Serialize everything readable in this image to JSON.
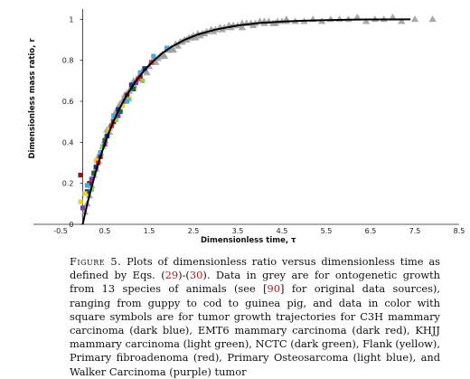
{
  "chart_data": {
    "type": "scatter",
    "xlabel": "Dimensionless time, τ",
    "ylabel": "Dimensionless mass ratio, r",
    "xlim": [
      -0.5,
      8.5
    ],
    "ylim": [
      0,
      1.05
    ],
    "xticks": [
      -0.5,
      0.5,
      1.5,
      2.5,
      3.5,
      4.5,
      5.5,
      6.5,
      7.5,
      8.5
    ],
    "yticks": [
      0,
      0.2,
      0.4,
      0.6,
      0.8,
      1
    ],
    "xtick_labels": [
      "-0.5",
      "0.5",
      "1.5",
      "2.5",
      "3.5",
      "4.5",
      "5.5",
      "6.5",
      "7.5",
      "8.5"
    ],
    "ytick_labels": [
      "0",
      "0.2",
      "0.4",
      "0.6",
      "0.8",
      "1"
    ],
    "grid": false,
    "legend": "none",
    "curve": {
      "x": [
        0,
        0.1,
        0.2,
        0.3,
        0.4,
        0.5,
        0.6,
        0.7,
        0.8,
        0.9,
        1.0,
        1.2,
        1.4,
        1.6,
        1.8,
        2.0,
        2.3,
        2.6,
        3.0,
        3.5,
        4.0,
        4.5,
        5.0,
        5.5,
        6.0,
        6.5,
        7.0,
        7.4
      ],
      "y": [
        0.0,
        0.097,
        0.181,
        0.259,
        0.33,
        0.394,
        0.452,
        0.504,
        0.551,
        0.593,
        0.632,
        0.699,
        0.753,
        0.798,
        0.835,
        0.865,
        0.9,
        0.926,
        0.95,
        0.97,
        0.982,
        0.989,
        0.993,
        0.996,
        0.998,
        0.999,
        0.999,
        1.0
      ],
      "color": "#000000"
    },
    "series": [
      {
        "marker": "triangle",
        "color": "#9a9a9a",
        "x": [
          0.05,
          0.1,
          0.15,
          0.2,
          0.25,
          0.3,
          0.35,
          0.4,
          0.45,
          0.5,
          0.55,
          0.6,
          0.65,
          0.7,
          0.75,
          0.8,
          0.85,
          0.9,
          0.95,
          1.0,
          1.05,
          1.1,
          1.15,
          1.2,
          1.3,
          1.4,
          1.5,
          1.6,
          1.7,
          1.8,
          1.9,
          2.0,
          2.1,
          2.2,
          2.3,
          2.4,
          2.5,
          2.6,
          2.7,
          2.8,
          2.9,
          3.0,
          3.1,
          3.2,
          3.3,
          3.4,
          3.5,
          3.6,
          3.7,
          3.8,
          3.9,
          4.0,
          4.1,
          4.2,
          4.3,
          4.4,
          4.5,
          4.6,
          4.8,
          5.0,
          5.2,
          5.4,
          5.6,
          5.8,
          6.0,
          6.2,
          6.4,
          6.6,
          6.8,
          7.0,
          7.2,
          7.5,
          7.9,
          0.35,
          0.55,
          0.75,
          0.95,
          1.15,
          1.35,
          1.55,
          1.75,
          1.95,
          2.15,
          2.35,
          2.55,
          2.75,
          2.95,
          3.15,
          3.35,
          3.6,
          3.85,
          4.1,
          4.35,
          4.6,
          0.6,
          0.85,
          1.25,
          1.45,
          1.65,
          1.85,
          2.05,
          2.25,
          2.45,
          2.65
        ],
        "y": [
          0.06,
          0.1,
          0.14,
          0.19,
          0.24,
          0.27,
          0.31,
          0.35,
          0.38,
          0.41,
          0.44,
          0.47,
          0.49,
          0.52,
          0.54,
          0.57,
          0.58,
          0.6,
          0.62,
          0.64,
          0.65,
          0.67,
          0.68,
          0.7,
          0.72,
          0.75,
          0.77,
          0.8,
          0.81,
          0.83,
          0.85,
          0.86,
          0.88,
          0.89,
          0.9,
          0.91,
          0.92,
          0.93,
          0.93,
          0.94,
          0.95,
          0.95,
          0.96,
          0.96,
          0.97,
          0.97,
          0.97,
          0.98,
          0.98,
          0.98,
          0.98,
          0.99,
          0.99,
          0.99,
          0.98,
          0.99,
          0.99,
          1.0,
          0.99,
          0.99,
          1.0,
          0.99,
          1.0,
          1.0,
          1.0,
          1.01,
          0.99,
          1.0,
          1.0,
          1.01,
          0.99,
          1.0,
          1.0,
          0.33,
          0.46,
          0.55,
          0.63,
          0.7,
          0.75,
          0.79,
          0.82,
          0.85,
          0.87,
          0.9,
          0.91,
          0.93,
          0.94,
          0.95,
          0.96,
          0.96,
          0.97,
          0.98,
          0.98,
          0.99,
          0.45,
          0.59,
          0.71,
          0.74,
          0.79,
          0.82,
          0.85,
          0.89,
          0.91,
          0.92
        ]
      },
      {
        "marker": "square",
        "color": "#1f3c88",
        "x": [
          0.1,
          0.3,
          0.55,
          0.8,
          1.1,
          1.4
        ],
        "y": [
          0.16,
          0.28,
          0.43,
          0.56,
          0.68,
          0.76
        ]
      },
      {
        "marker": "square",
        "color": "#8b1a1a",
        "x": [
          -0.05,
          0.15,
          0.4,
          0.7,
          1.0,
          1.3
        ],
        "y": [
          0.24,
          0.2,
          0.33,
          0.5,
          0.63,
          0.72
        ]
      },
      {
        "marker": "square",
        "color": "#7fd35a",
        "x": [
          0.2,
          0.45,
          0.75,
          1.05,
          1.35
        ],
        "y": [
          0.17,
          0.38,
          0.51,
          0.61,
          0.7
        ]
      },
      {
        "marker": "square",
        "color": "#1e6b2e",
        "x": [
          0.25,
          0.5,
          0.85,
          1.15
        ],
        "y": [
          0.25,
          0.41,
          0.55,
          0.66
        ]
      },
      {
        "marker": "square",
        "color": "#f0d22c",
        "x": [
          -0.05,
          0.05,
          0.3,
          0.6,
          0.9
        ],
        "y": [
          0.11,
          0.15,
          0.31,
          0.46,
          0.58
        ]
      },
      {
        "marker": "square",
        "color": "#e03030",
        "x": [
          0.35,
          0.65,
          0.95,
          1.25,
          1.55
        ],
        "y": [
          0.3,
          0.48,
          0.6,
          0.71,
          0.79
        ]
      },
      {
        "marker": "square",
        "color": "#49a7dd",
        "x": [
          0.1,
          0.4,
          0.7,
          1.0,
          1.3,
          1.6,
          1.9
        ],
        "y": [
          0.19,
          0.35,
          0.53,
          0.6,
          0.74,
          0.82,
          0.86
        ]
      },
      {
        "marker": "square",
        "color": "#7b3fa5",
        "x": [
          0.0,
          0.2,
          0.5,
          0.8,
          1.2
        ],
        "y": [
          0.08,
          0.22,
          0.39,
          0.53,
          0.69
        ]
      }
    ]
  },
  "caption": {
    "fig_label": "Figure 5.",
    "text_1": " Plots of dimensionless ratio versus dimensionless time as defined by Eqs. (",
    "ref_1": "29",
    "text_2": ")-(",
    "ref_2": "30",
    "text_3": "). Data in grey are for ontogenetic growth from 13 species of animals (see [",
    "ref_3": "90",
    "text_4": "] for original data sources), ranging from guppy to cod to guinea pig, and data in color with square symbols are for tumor growth trajectories for C3H mammary carcinoma (dark blue), EMT6 mammary carcinoma (dark red), KHJJ mammary carcinoma (light green), NCTC (dark green), Flank (yellow), Primary fibroadenoma (red), Primary Osteosarcoma (light blue), and Walker Carcinoma (purple) tumor"
  }
}
